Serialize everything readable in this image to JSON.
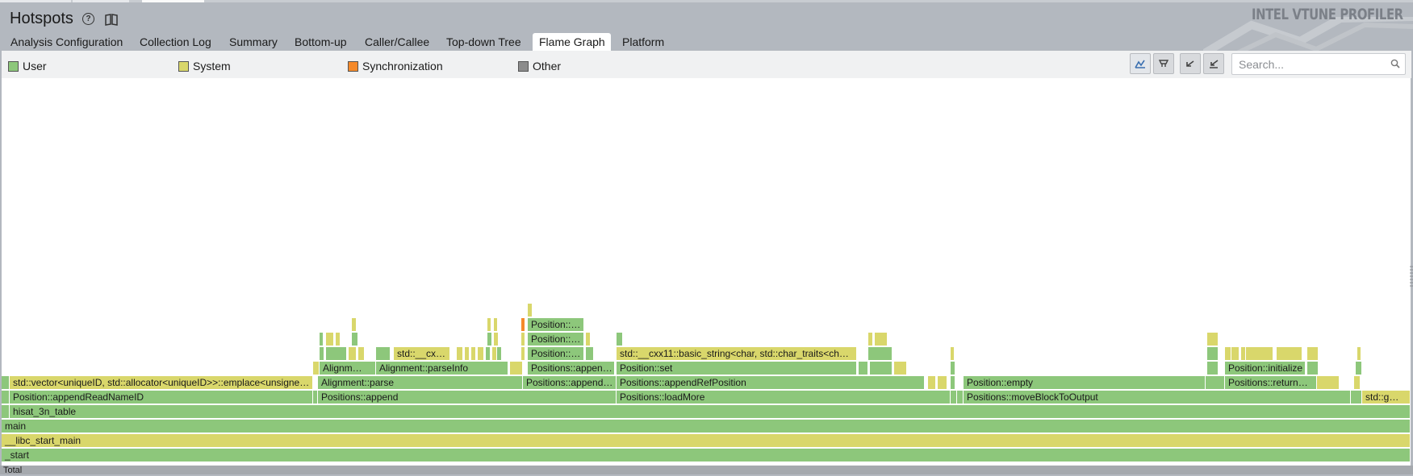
{
  "header": {
    "title": "Hotspots",
    "brand": "INTEL VTUNE PROFILER"
  },
  "tabs": [
    {
      "label": "Analysis Configuration",
      "active": false
    },
    {
      "label": "Collection Log",
      "active": false
    },
    {
      "label": "Summary",
      "active": false
    },
    {
      "label": "Bottom-up",
      "active": false
    },
    {
      "label": "Caller/Callee",
      "active": false
    },
    {
      "label": "Top-down Tree",
      "active": false
    },
    {
      "label": "Flame Graph",
      "active": true
    },
    {
      "label": "Platform",
      "active": false
    }
  ],
  "legend": [
    {
      "label": "User",
      "color": "#8dc77b"
    },
    {
      "label": "System",
      "color": "#d9d76b"
    },
    {
      "label": "Synchronization",
      "color": "#f58a2b"
    },
    {
      "label": "Other",
      "color": "#8c8c8c"
    }
  ],
  "toolbar": {
    "tools": [
      "zoom-to-fit-icon",
      "zoom-in-icon",
      "undo-zoom-icon",
      "reset-zoom-icon"
    ]
  },
  "search": {
    "placeholder": "Search..."
  },
  "colors": {
    "user": "#8dc77b",
    "system": "#d9d76b",
    "synchronization": "#f58a2b",
    "other": "#8c8c8c"
  },
  "flame": {
    "total": "Total",
    "frames": [
      {
        "label": "_start",
        "kind": "u"
      },
      {
        "label": "__libc_start_main",
        "kind": "s"
      },
      {
        "label": "main",
        "kind": "u"
      },
      {
        "label": "hisat_3n_table",
        "kind": "u"
      },
      {
        "label": "Position::appendReadNameID",
        "kind": "u"
      },
      {
        "label": "std::vector<uniqueID, std::allocator<uniqueID>>::emplace<unsigne…",
        "kind": "s"
      },
      {
        "label": "Positions::append",
        "kind": "u"
      },
      {
        "label": "Alignment::parse",
        "kind": "u"
      },
      {
        "label": "Alignm…",
        "kind": "u"
      },
      {
        "label": "Alignment::parseInfo",
        "kind": "u"
      },
      {
        "label": "std::__cx…",
        "kind": "s"
      },
      {
        "label": "Positions::append…",
        "kind": "u"
      },
      {
        "label": "Positions::appen…",
        "kind": "u"
      },
      {
        "label": "Position::…",
        "kind": "u"
      },
      {
        "label": "Position::…",
        "kind": "u"
      },
      {
        "label": "Position::…",
        "kind": "u"
      },
      {
        "label": "Positions::loadMore",
        "kind": "u"
      },
      {
        "label": "Positions::appendRefPosition",
        "kind": "u"
      },
      {
        "label": "Position::set",
        "kind": "u"
      },
      {
        "label": "std::__cxx11::basic_string<char, std::char_traits<ch…",
        "kind": "s"
      },
      {
        "label": "Positions::moveBlockToOutput",
        "kind": "u"
      },
      {
        "label": "Position::empty",
        "kind": "u"
      },
      {
        "label": "Positions::return…",
        "kind": "u"
      },
      {
        "label": "Position::initialize",
        "kind": "u"
      },
      {
        "label": "std::g…",
        "kind": "s"
      }
    ]
  }
}
